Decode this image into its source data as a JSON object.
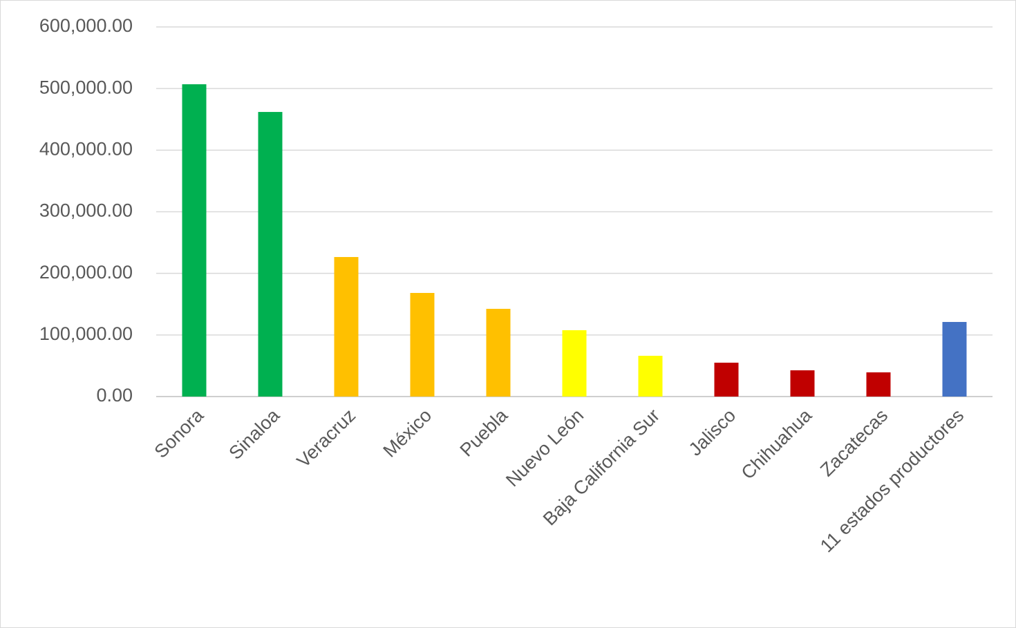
{
  "chart_data": {
    "type": "bar",
    "categories": [
      "Sonora",
      "Sinaloa",
      "Veracruz",
      "México",
      "Puebla",
      "Nuevo León",
      "Baja California Sur",
      "Jalisco",
      "Chihuahua",
      "Zacatecas",
      "11 estados productores"
    ],
    "values": [
      507000,
      462000,
      226500,
      168200,
      142400,
      107700,
      66200,
      55000,
      42600,
      39300,
      121100
    ],
    "colors": [
      "#00b050",
      "#00b050",
      "#ffc000",
      "#ffc000",
      "#ffc000",
      "#ffff00",
      "#ffff00",
      "#c00000",
      "#c00000",
      "#c00000",
      "#4472c4"
    ],
    "ylim": [
      0,
      600000
    ],
    "yticks": [
      {
        "value": 0,
        "label": "0.00"
      },
      {
        "value": 100000,
        "label": "100,000.00"
      },
      {
        "value": 200000,
        "label": "200,000.00"
      },
      {
        "value": 300000,
        "label": "300,000.00"
      },
      {
        "value": 400000,
        "label": "400,000.00"
      },
      {
        "value": 500000,
        "label": "500,000.00"
      },
      {
        "value": 600000,
        "label": "600,000.00"
      }
    ],
    "grid": true
  }
}
